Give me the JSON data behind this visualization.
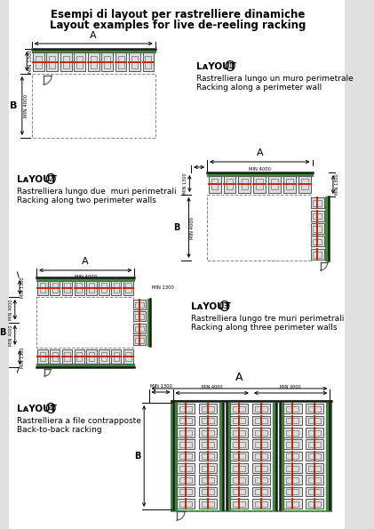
{
  "title_line1": "Esempi di layout per rastrelliere dinamiche",
  "title_line2": "Layout examples for live de-reeling racking",
  "bg_color": "#e8e8e8",
  "wall_color": "#1a1a1a",
  "green_color": "#3a8a3a",
  "red_color": "#cc2200",
  "gray_color": "#555555",
  "layout1": {
    "label": "LAYOUT",
    "num": "1",
    "desc1": "Rastrelliera lungo un muro perimetrale",
    "desc2": "Racking along a perimeter wall"
  },
  "layout2": {
    "label": "LAYOUT",
    "num": "2",
    "desc1": "Rastrelliera lungo due  muri perimetrali",
    "desc2": "Racking along two perimeter walls"
  },
  "layout3": {
    "label": "LAYOUT",
    "num": "3",
    "desc1": "Rastrelliera lungo tre muri perimetrali",
    "desc2": "Racking along three perimeter walls"
  },
  "layout4": {
    "label": "LAYOUT",
    "num": "4",
    "desc1": "Rastrelliera a file contrapposte",
    "desc2": "Back-to-back racking"
  }
}
